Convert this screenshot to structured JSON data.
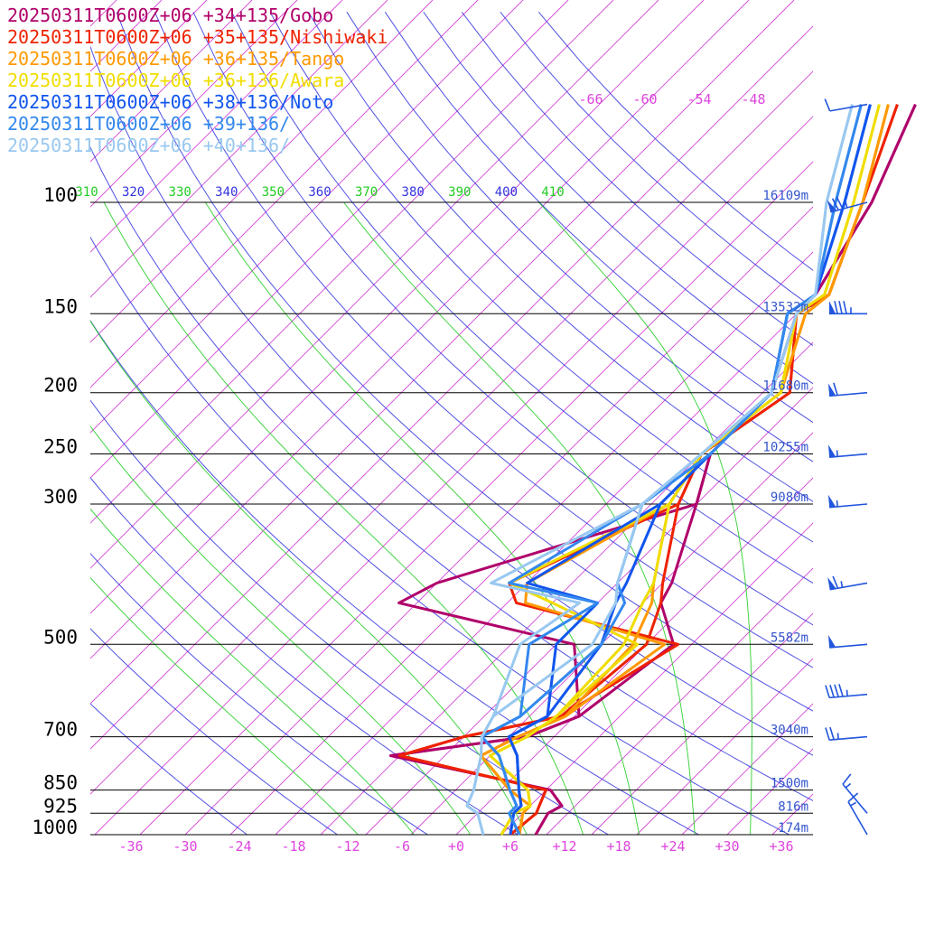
{
  "chart_data": {
    "type": "line",
    "title": "",
    "xlabel": "",
    "ylabel": "",
    "x_axis": {
      "labels": [
        "-36",
        "-30",
        "-24",
        "-18",
        "-12",
        "-6",
        "+0",
        "+6",
        "+12",
        "+18",
        "+24",
        "+30",
        "+36"
      ],
      "values": [
        -36,
        -30,
        -24,
        -18,
        -12,
        -6,
        0,
        6,
        12,
        18,
        24,
        30,
        36
      ],
      "xlim": [
        -40,
        40
      ],
      "color": "#dd44dd"
    },
    "pressure_levels": [
      {
        "p": 100,
        "label": "100",
        "height": "16109m"
      },
      {
        "p": 150,
        "label": "150",
        "height": "13532m"
      },
      {
        "p": 200,
        "label": "200",
        "height": "11680m"
      },
      {
        "p": 250,
        "label": "250",
        "height": "10255m"
      },
      {
        "p": 300,
        "label": "300",
        "height": "9080m"
      },
      {
        "p": 500,
        "label": "500",
        "height": "5582m"
      },
      {
        "p": 700,
        "label": "700",
        "height": "3040m"
      },
      {
        "p": 850,
        "label": "850",
        "height": "1500m"
      },
      {
        "p": 925,
        "label": "925",
        "height": "816m"
      },
      {
        "p": 1000,
        "label": "1000",
        "height": "174m"
      }
    ],
    "theta_labels": [
      {
        "t": 310,
        "label": "310"
      },
      {
        "t": 320,
        "label": "320"
      },
      {
        "t": 330,
        "label": "330"
      },
      {
        "t": 340,
        "label": "340"
      },
      {
        "t": 350,
        "label": "350"
      },
      {
        "t": 360,
        "label": "360"
      },
      {
        "t": 370,
        "label": "370"
      },
      {
        "t": 380,
        "label": "380"
      },
      {
        "t": 390,
        "label": "390"
      },
      {
        "t": 400,
        "label": "400"
      },
      {
        "t": 410,
        "label": "410"
      }
    ],
    "upper_temp_labels": [
      "-66",
      "-60",
      "-54",
      "-48"
    ],
    "colors": {
      "isotherm": "#cc22cc",
      "dry_adiabat": "#3333dd",
      "moist_adiabat": "#22cc22",
      "isobar": "#000000",
      "height": "#3355cc",
      "barb": "#2255dd"
    },
    "series": [
      {
        "name": "20250311T0600Z+06 +34+135/Gobo",
        "color": "#b0006a",
        "p": [
          1000,
          925,
          900,
          850,
          750,
          700,
          650,
          500,
          430,
          400,
          300,
          250,
          200,
          150,
          140,
          100,
          70
        ],
        "t": [
          8.8,
          7.8,
          8.5,
          5.5,
          -16,
          -3,
          0.5,
          3,
          -3,
          -4,
          -10,
          -14,
          -14,
          -20,
          -20,
          -24,
          -30
        ],
        "d": [
          8.8,
          7.8,
          8.5,
          5.5,
          -16,
          -3,
          0.5,
          -8,
          -32,
          -30,
          -10,
          -14,
          -14,
          -20,
          -20,
          -24,
          -30
        ]
      },
      {
        "name": "20250311T0600Z+06 +35+135/Nishiwaki",
        "color": "#ee2200",
        "p": [
          1000,
          925,
          900,
          850,
          750,
          700,
          650,
          500,
          430,
          400,
          300,
          250,
          200,
          150,
          140,
          100,
          70
        ],
        "t": [
          6,
          6.5,
          6,
          5,
          -15,
          -10,
          -1.5,
          0,
          -3,
          -5,
          -12,
          -15,
          -12,
          -20,
          -18.5,
          -25,
          -32
        ],
        "d": [
          6,
          6.5,
          6,
          5,
          -15,
          -10,
          -1.5,
          3.5,
          -19,
          -22,
          -12,
          -15,
          -12,
          -20,
          -18.5,
          -25,
          -32
        ]
      },
      {
        "name": "20250311T0600Z+06 +36+135/Tango",
        "color": "#ff9900",
        "p": [
          1000,
          925,
          900,
          850,
          750,
          700,
          650,
          500,
          430,
          400,
          300,
          250,
          200,
          150,
          140,
          100,
          70
        ],
        "t": [
          7,
          5,
          5,
          1,
          -6,
          -4,
          -1,
          -1.5,
          -4,
          -6,
          -13,
          -15,
          -13,
          -19,
          -18.5,
          -25,
          -33
        ],
        "d": [
          7,
          5,
          5,
          1,
          -6,
          -4,
          -1,
          2,
          -18,
          -20,
          -13,
          -15,
          -13,
          -19,
          -18.5,
          -25,
          -33
        ]
      },
      {
        "name": "20250311T0600Z+06 +36+136/Awara",
        "color": "#f0dd00",
        "p": [
          1000,
          925,
          900,
          850,
          750,
          700,
          650,
          500,
          430,
          400,
          300,
          250,
          200,
          150,
          140,
          100,
          70
        ],
        "t": [
          5,
          4,
          5,
          3,
          -5,
          -3,
          -2,
          -2.5,
          -5,
          -6,
          -13,
          -15,
          -13,
          -20,
          -19,
          -26,
          -34
        ],
        "d": [
          5,
          4,
          5,
          3,
          -5,
          -3,
          -2,
          -1,
          -15,
          -22,
          -13,
          -15,
          -13,
          -20,
          -19,
          -26,
          -34
        ]
      },
      {
        "name": "20250311T0600Z+06 +38+136/Noto",
        "color": "#1155ee",
        "p": [
          1000,
          925,
          900,
          850,
          750,
          700,
          650,
          500,
          430,
          400,
          300,
          250,
          200,
          150,
          140,
          100,
          70
        ],
        "t": [
          6,
          4,
          4,
          2,
          -2,
          -5,
          -3,
          -5,
          -8,
          -9,
          -14,
          -14,
          -14,
          -21,
          -20,
          -27,
          -35
        ],
        "d": [
          6,
          4,
          4,
          2,
          -2,
          -5,
          -3,
          -10,
          -10,
          -20,
          -14,
          -14,
          -14,
          -21,
          -20,
          -27,
          -35
        ]
      },
      {
        "name": "20250311T0600Z+06 +39+136/",
        "color": "#3388ee",
        "p": [
          1000,
          925,
          900,
          850,
          750,
          700,
          650,
          500,
          430,
          400,
          300,
          250,
          200,
          150,
          140,
          100,
          70
        ],
        "t": [
          7,
          3.5,
          3.5,
          1,
          -4,
          -8,
          -6,
          -5,
          -7,
          -10,
          -16,
          -14,
          -14,
          -21,
          -20,
          -28,
          -36
        ],
        "d": [
          7,
          3.5,
          3.5,
          1,
          -4,
          -8,
          -6,
          -13,
          -10,
          -22,
          -16,
          -14,
          -14,
          -21,
          -20,
          -28,
          -36
        ]
      },
      {
        "name": "20250311T0600Z+06 +40+136/",
        "color": "#99c8f0",
        "p": [
          1000,
          925,
          900,
          850,
          750,
          700,
          650,
          500,
          430,
          400,
          300,
          250,
          200,
          150,
          140,
          100,
          70
        ],
        "t": [
          3,
          0,
          -2,
          -3,
          -6,
          -8,
          -9,
          -6,
          -8,
          -10,
          -16,
          -15,
          -14,
          -20,
          -20,
          -29,
          -37
        ],
        "d": [
          3,
          0,
          -2,
          -3,
          -6,
          -8,
          -9,
          -14,
          -12,
          -24,
          -16,
          -15,
          -14,
          -20,
          -20,
          -29,
          -37
        ]
      }
    ],
    "wind_barbs": [
      {
        "p": 70,
        "speed": 10,
        "direction": 260
      },
      {
        "p": 100,
        "speed": 75,
        "direction": 255
      },
      {
        "p": 150,
        "speed": 85,
        "direction": 270
      },
      {
        "p": 200,
        "speed": 60,
        "direction": 265
      },
      {
        "p": 250,
        "speed": 55,
        "direction": 265
      },
      {
        "p": 300,
        "speed": 55,
        "direction": 265
      },
      {
        "p": 400,
        "speed": 65,
        "direction": 260
      },
      {
        "p": 500,
        "speed": 50,
        "direction": 265
      },
      {
        "p": 600,
        "speed": 45,
        "direction": 265
      },
      {
        "p": 700,
        "speed": 25,
        "direction": 265
      },
      {
        "p": 925,
        "speed": 15,
        "direction": 320
      },
      {
        "p": 1000,
        "speed": 15,
        "direction": 330
      }
    ],
    "grid": true,
    "legend_placement": "top-left"
  }
}
